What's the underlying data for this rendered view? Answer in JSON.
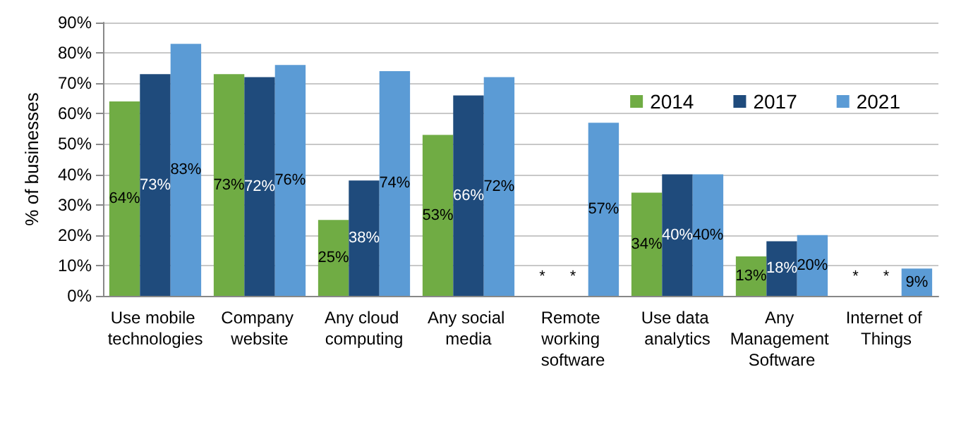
{
  "chart_data": {
    "type": "bar",
    "ylabel": "% of businesses",
    "categories": [
      "Use mobile technologies",
      "Company website",
      "Any cloud computing",
      "Any social media",
      "Remote working software",
      "Use data analytics",
      "Any Management Software",
      "Internet of Things"
    ],
    "series": [
      {
        "name": "2014",
        "color": "#70ac44",
        "values": [
          64,
          73,
          25,
          53,
          null,
          34,
          13,
          null
        ],
        "value_labels": [
          "64%",
          "73%",
          "25%",
          "53%",
          "*",
          "34%",
          "13%",
          "*"
        ]
      },
      {
        "name": "2017",
        "color": "#1f4b7c",
        "values": [
          73,
          72,
          38,
          66,
          null,
          40,
          18,
          null
        ],
        "value_labels": [
          "73%",
          "72%",
          "38%",
          "66%",
          "*",
          "40%",
          "18%",
          "*"
        ]
      },
      {
        "name": "2021",
        "color": "#5b9bd5",
        "values": [
          83,
          76,
          74,
          72,
          57,
          40,
          20,
          9
        ],
        "value_labels": [
          "83%",
          "76%",
          "74%",
          "72%",
          "57%",
          "40%",
          "20%",
          "9%"
        ]
      }
    ],
    "ylim": [
      0,
      90
    ],
    "yticks": [
      {
        "value": 0,
        "label": "0%"
      },
      {
        "value": 10,
        "label": "10%"
      },
      {
        "value": 20,
        "label": "20%"
      },
      {
        "value": 30,
        "label": "30%"
      },
      {
        "value": 40,
        "label": "40%"
      },
      {
        "value": 50,
        "label": "50%"
      },
      {
        "value": 60,
        "label": "60%"
      },
      {
        "value": 70,
        "label": "70%"
      },
      {
        "value": 80,
        "label": "80%"
      },
      {
        "value": 90,
        "label": "90%"
      }
    ],
    "grid": "y",
    "legend": "top right"
  }
}
